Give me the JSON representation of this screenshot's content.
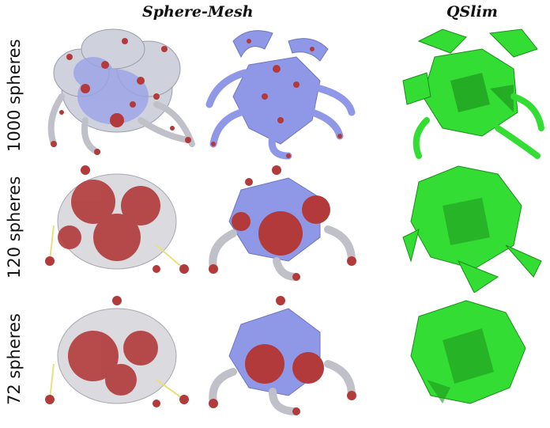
{
  "columns": [
    {
      "label": "Sphere-Mesh"
    },
    {
      "label": "QSlim"
    }
  ],
  "rows": [
    {
      "label": "1000 spheres"
    },
    {
      "label": "120 spheres"
    },
    {
      "label": "72 spheres"
    }
  ],
  "colors": {
    "sphere_red": "#b23a3a",
    "mesh_blue": "#8f98e6",
    "hull_grey": "#c9c9c9",
    "qslim_green": "#33dd33",
    "edge_yellow": "#e8e080"
  }
}
